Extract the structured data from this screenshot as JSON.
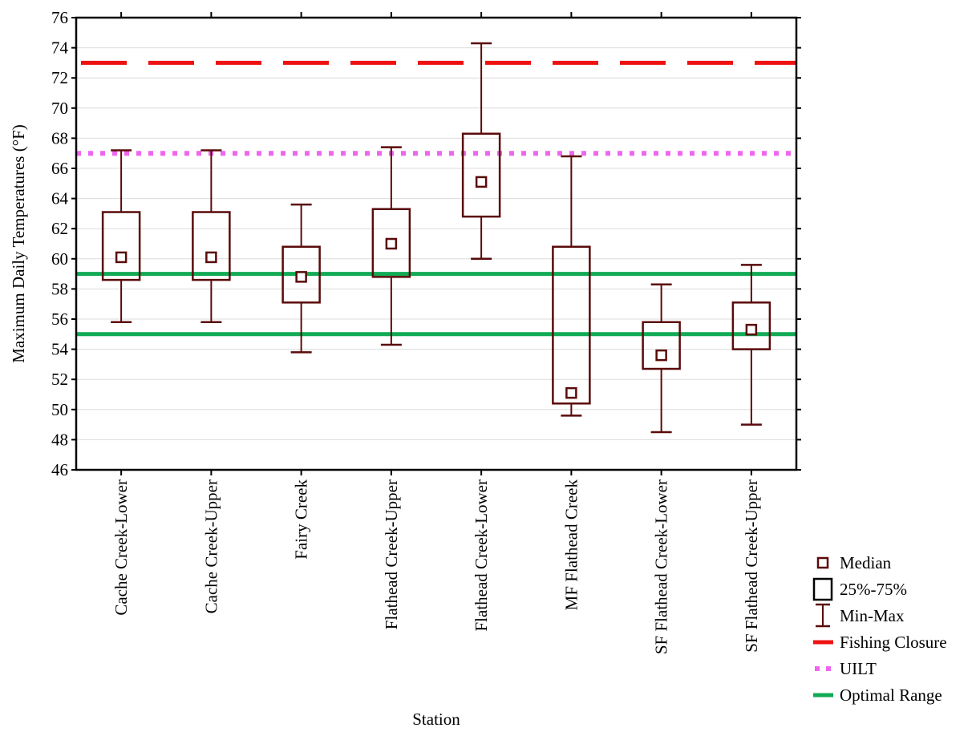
{
  "chart_data": {
    "type": "box",
    "title": "",
    "xlabel": "Station",
    "ylabel": "Maximum Daily Temperatures (°F)",
    "ylim": [
      46,
      76
    ],
    "yticks": [
      46,
      48,
      50,
      52,
      54,
      56,
      58,
      60,
      62,
      64,
      66,
      68,
      70,
      72,
      74,
      76
    ],
    "grid": true,
    "legend_position": "bottom-right",
    "box_color": "#5a0a0a",
    "categories": [
      "Cache Creek-Lower",
      "Cache Creek-Upper",
      "Fairy Creek",
      "Flathead Creek-Upper",
      "Flathead Creek-Lower",
      "MF Flathead Creek",
      "SF Flathead Creek-Lower",
      "SF Flathead Creek-Upper"
    ],
    "boxes": [
      {
        "min": 55.8,
        "q1": 58.6,
        "median": 60.1,
        "q3": 63.1,
        "max": 67.2
      },
      {
        "min": 55.8,
        "q1": 58.6,
        "median": 60.1,
        "q3": 63.1,
        "max": 67.2
      },
      {
        "min": 53.8,
        "q1": 57.1,
        "median": 58.8,
        "q3": 60.8,
        "max": 63.6
      },
      {
        "min": 54.3,
        "q1": 58.8,
        "median": 61.0,
        "q3": 63.3,
        "max": 67.4
      },
      {
        "min": 60.0,
        "q1": 62.8,
        "median": 65.1,
        "q3": 68.3,
        "max": 74.3
      },
      {
        "min": 49.6,
        "q1": 50.4,
        "median": 51.1,
        "q3": 60.8,
        "max": 66.8
      },
      {
        "min": 48.5,
        "q1": 52.7,
        "median": 53.6,
        "q3": 55.8,
        "max": 58.3
      },
      {
        "min": 49.0,
        "q1": 54.0,
        "median": 55.3,
        "q3": 57.1,
        "max": 59.6
      }
    ],
    "reference_lines": [
      {
        "name": "Fishing Closure",
        "value": 73,
        "color": "#ee1111",
        "style": "dashed"
      },
      {
        "name": "UILT",
        "value": 67,
        "color": "#ee66ee",
        "style": "dotted"
      },
      {
        "name": "Optimal Range",
        "value": 59,
        "color": "#11aa55",
        "style": "solid"
      },
      {
        "name": "Optimal Range",
        "value": 55,
        "color": "#11aa55",
        "style": "solid"
      }
    ],
    "legend": [
      {
        "label": "Median",
        "symbol": "median"
      },
      {
        "label": "25%-75%",
        "symbol": "box"
      },
      {
        "label": "Min-Max",
        "symbol": "whisker"
      },
      {
        "label": "Fishing Closure",
        "symbol": "line",
        "color": "#ee1111"
      },
      {
        "label": "UILT",
        "symbol": "dots",
        "color": "#ee66ee"
      },
      {
        "label": "Optimal Range",
        "symbol": "line",
        "color": "#11aa55"
      }
    ]
  }
}
